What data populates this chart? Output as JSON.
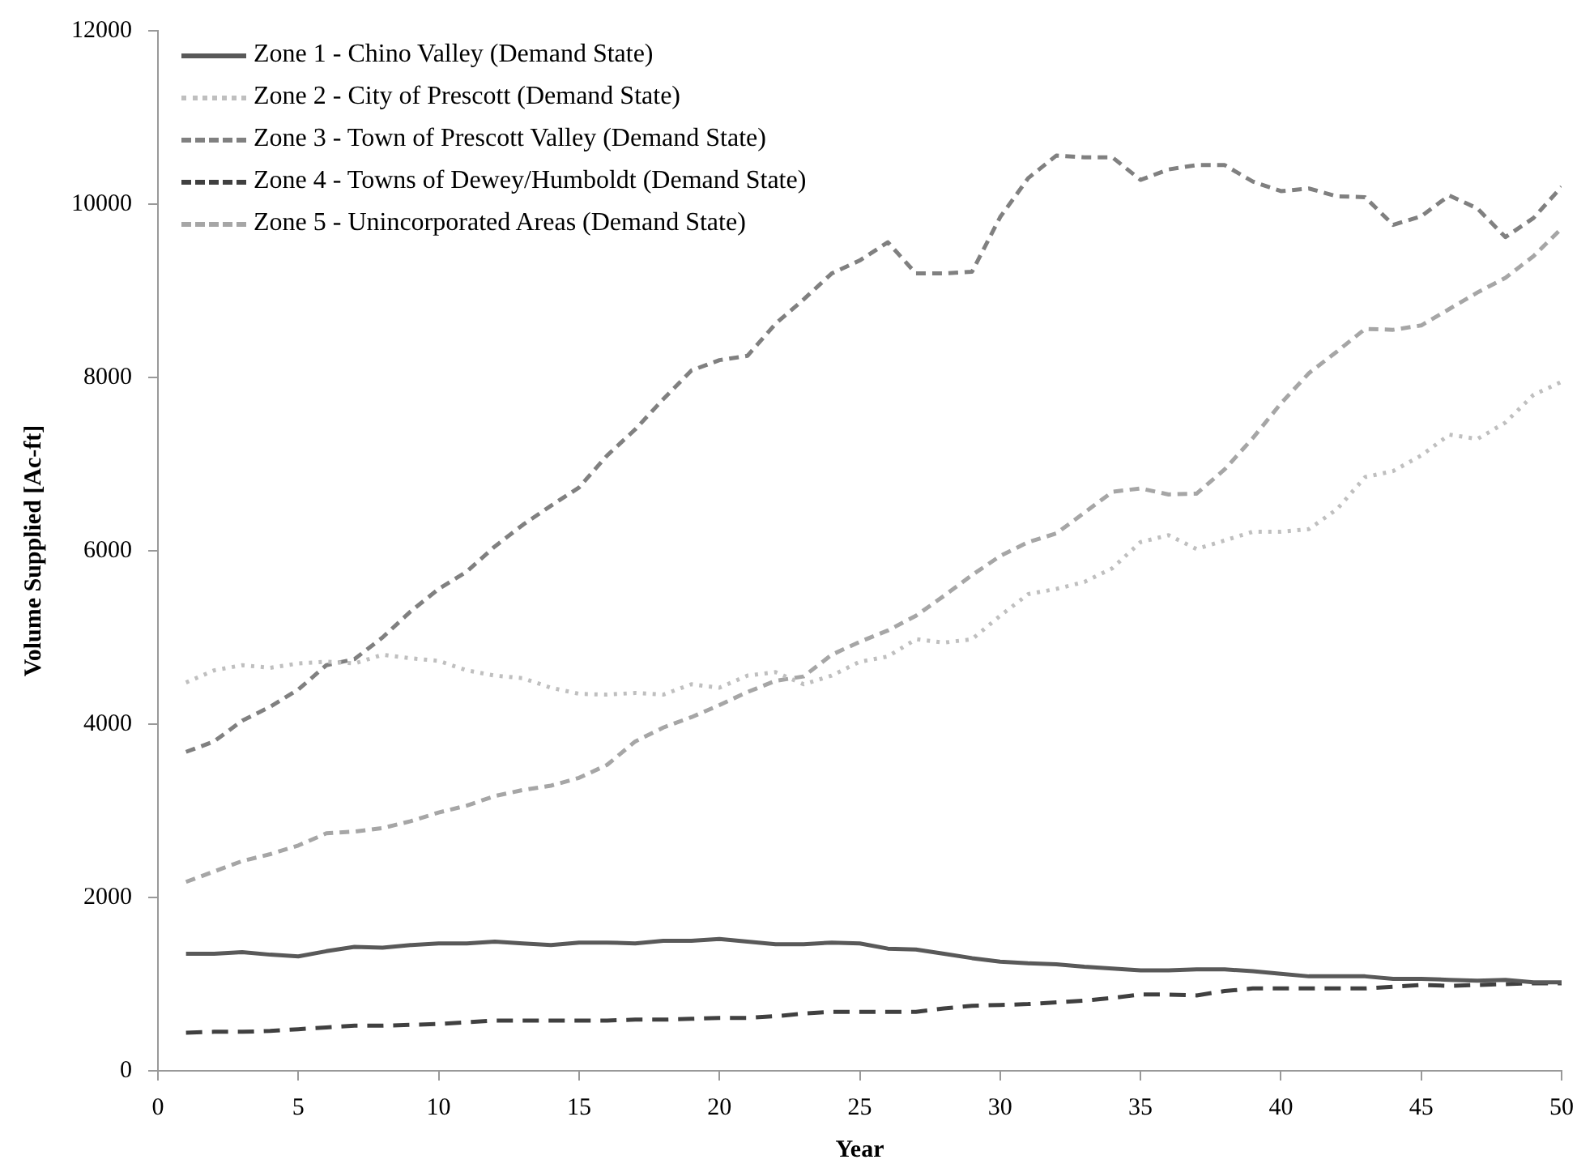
{
  "chart_data": {
    "type": "line",
    "xlabel": "Year",
    "ylabel": "Volume Supplied [Ac-ft]",
    "x": [
      1,
      2,
      3,
      4,
      5,
      6,
      7,
      8,
      9,
      10,
      11,
      12,
      13,
      14,
      15,
      16,
      17,
      18,
      19,
      20,
      21,
      22,
      23,
      24,
      25,
      26,
      27,
      28,
      29,
      30,
      31,
      32,
      33,
      34,
      35,
      36,
      37,
      38,
      39,
      40,
      41,
      42,
      43,
      44,
      45,
      46,
      47,
      48,
      49,
      50
    ],
    "xlim": [
      0,
      50
    ],
    "xticks": [
      0,
      5,
      10,
      15,
      20,
      25,
      30,
      35,
      40,
      45,
      50
    ],
    "ylim": [
      0,
      12000
    ],
    "yticks": [
      0,
      2000,
      4000,
      6000,
      8000,
      10000,
      12000
    ],
    "grid": false,
    "legend": "top left",
    "marker": "none",
    "series": [
      {
        "name": "Zone 1 - Chino Valley (Demand State)",
        "color": "#595959",
        "line_style": "solid",
        "values": [
          1350,
          1350,
          1370,
          1340,
          1320,
          1380,
          1430,
          1420,
          1450,
          1470,
          1470,
          1490,
          1470,
          1450,
          1480,
          1480,
          1470,
          1500,
          1500,
          1520,
          1490,
          1460,
          1460,
          1480,
          1470,
          1410,
          1400,
          1350,
          1300,
          1260,
          1240,
          1230,
          1200,
          1180,
          1160,
          1160,
          1170,
          1170,
          1150,
          1120,
          1090,
          1090,
          1090,
          1060,
          1060,
          1050,
          1040,
          1050,
          1020,
          1020
        ]
      },
      {
        "name": "Zone 2 - City of Prescott (Demand State)",
        "color": "#bfbfbf",
        "line_style": "dotted",
        "values": [
          4480,
          4620,
          4680,
          4650,
          4700,
          4720,
          4700,
          4800,
          4760,
          4730,
          4620,
          4560,
          4530,
          4420,
          4350,
          4340,
          4360,
          4340,
          4460,
          4420,
          4560,
          4600,
          4460,
          4560,
          4720,
          4780,
          4980,
          4940,
          4980,
          5250,
          5500,
          5560,
          5640,
          5800,
          6100,
          6180,
          6020,
          6120,
          6220,
          6220,
          6250,
          6480,
          6850,
          6920,
          7100,
          7340,
          7290,
          7480,
          7800,
          7950
        ]
      },
      {
        "name": "Zone 3 - Town of Prescott Valley (Demand State)",
        "color": "#808080",
        "line_style": "dashed",
        "values": [
          3680,
          3800,
          4040,
          4200,
          4400,
          4680,
          4750,
          5000,
          5300,
          5560,
          5760,
          6050,
          6300,
          6520,
          6730,
          7100,
          7400,
          7750,
          8080,
          8200,
          8250,
          8620,
          8900,
          9200,
          9350,
          9560,
          9200,
          9200,
          9220,
          9850,
          10300,
          10560,
          10540,
          10540,
          10280,
          10400,
          10450,
          10450,
          10260,
          10150,
          10180,
          10090,
          10080,
          9760,
          9860,
          10100,
          9950,
          9620,
          9840,
          10200
        ]
      },
      {
        "name": "Zone 4 - Towns of Dewey/Humboldt (Demand State)",
        "color": "#404040",
        "line_style": "dashed",
        "values": [
          440,
          450,
          450,
          460,
          480,
          500,
          520,
          520,
          530,
          540,
          560,
          580,
          580,
          580,
          580,
          580,
          590,
          590,
          600,
          610,
          610,
          630,
          660,
          680,
          680,
          680,
          680,
          720,
          750,
          760,
          770,
          790,
          810,
          840,
          880,
          880,
          870,
          920,
          950,
          950,
          950,
          950,
          950,
          970,
          990,
          980,
          990,
          1000,
          1010,
          1010
        ]
      },
      {
        "name": "Zone 5 - Unincorporated Areas (Demand State)",
        "color": "#a6a6a6",
        "line_style": "dashed",
        "values": [
          2180,
          2300,
          2420,
          2500,
          2600,
          2740,
          2760,
          2800,
          2880,
          2980,
          3060,
          3170,
          3240,
          3290,
          3380,
          3530,
          3800,
          3960,
          4080,
          4220,
          4370,
          4500,
          4550,
          4800,
          4950,
          5080,
          5250,
          5480,
          5720,
          5940,
          6100,
          6200,
          6440,
          6680,
          6720,
          6650,
          6660,
          6940,
          7300,
          7700,
          8050,
          8300,
          8560,
          8550,
          8600,
          8790,
          8980,
          9150,
          9400,
          9720
        ]
      }
    ]
  }
}
